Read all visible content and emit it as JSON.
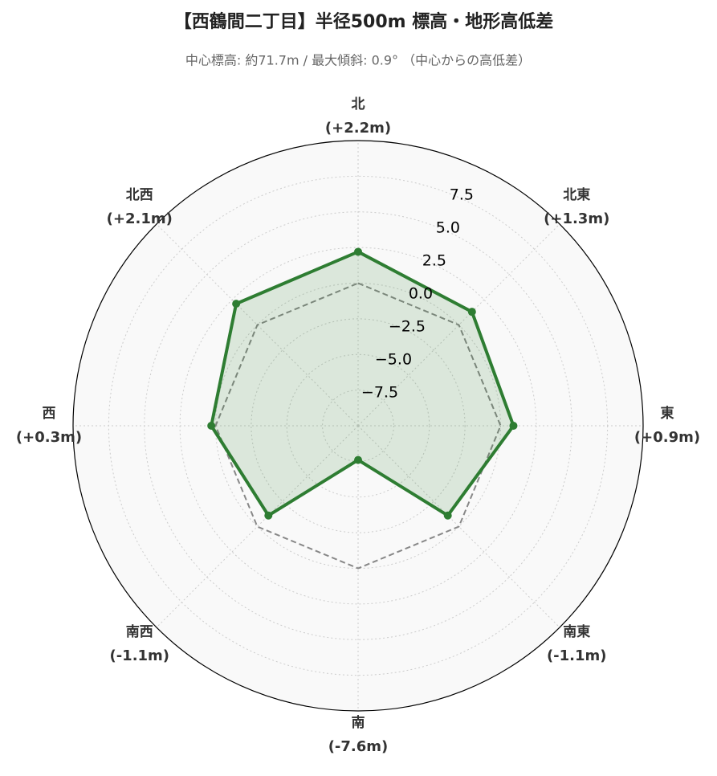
{
  "chart_data": {
    "type": "radar",
    "title": "【西鶴間二丁目】半径500m 標高・地形高低差",
    "subtitle": "中心標高: 約71.7m / 最大傾斜: 0.9° （中心からの高低差）",
    "categories": [
      "北",
      "北東",
      "東",
      "南東",
      "南",
      "南西",
      "西",
      "北西"
    ],
    "values": [
      2.2,
      1.3,
      0.9,
      -1.1,
      -7.6,
      -1.1,
      0.3,
      2.1
    ],
    "value_labels": [
      "(+2.2m)",
      "(+1.3m)",
      "(+0.9m)",
      "(-1.1m)",
      "(-7.6m)",
      "(-1.1m)",
      "(+0.3m)",
      "(+2.1m)"
    ],
    "color": "#2e7d32",
    "reference": 0,
    "reference_color": "#888888",
    "ylim": [
      -10,
      10
    ],
    "yticks": [
      {
        "value": -7.5,
        "label": "−7.5"
      },
      {
        "value": -5,
        "label": "−5.0"
      },
      {
        "value": -2.5,
        "label": "−2.5"
      },
      {
        "value": 0,
        "label": "0.0"
      },
      2.5,
      {
        "value": 5,
        "label": "5.0"
      },
      7.5
    ],
    "grid": true
  }
}
